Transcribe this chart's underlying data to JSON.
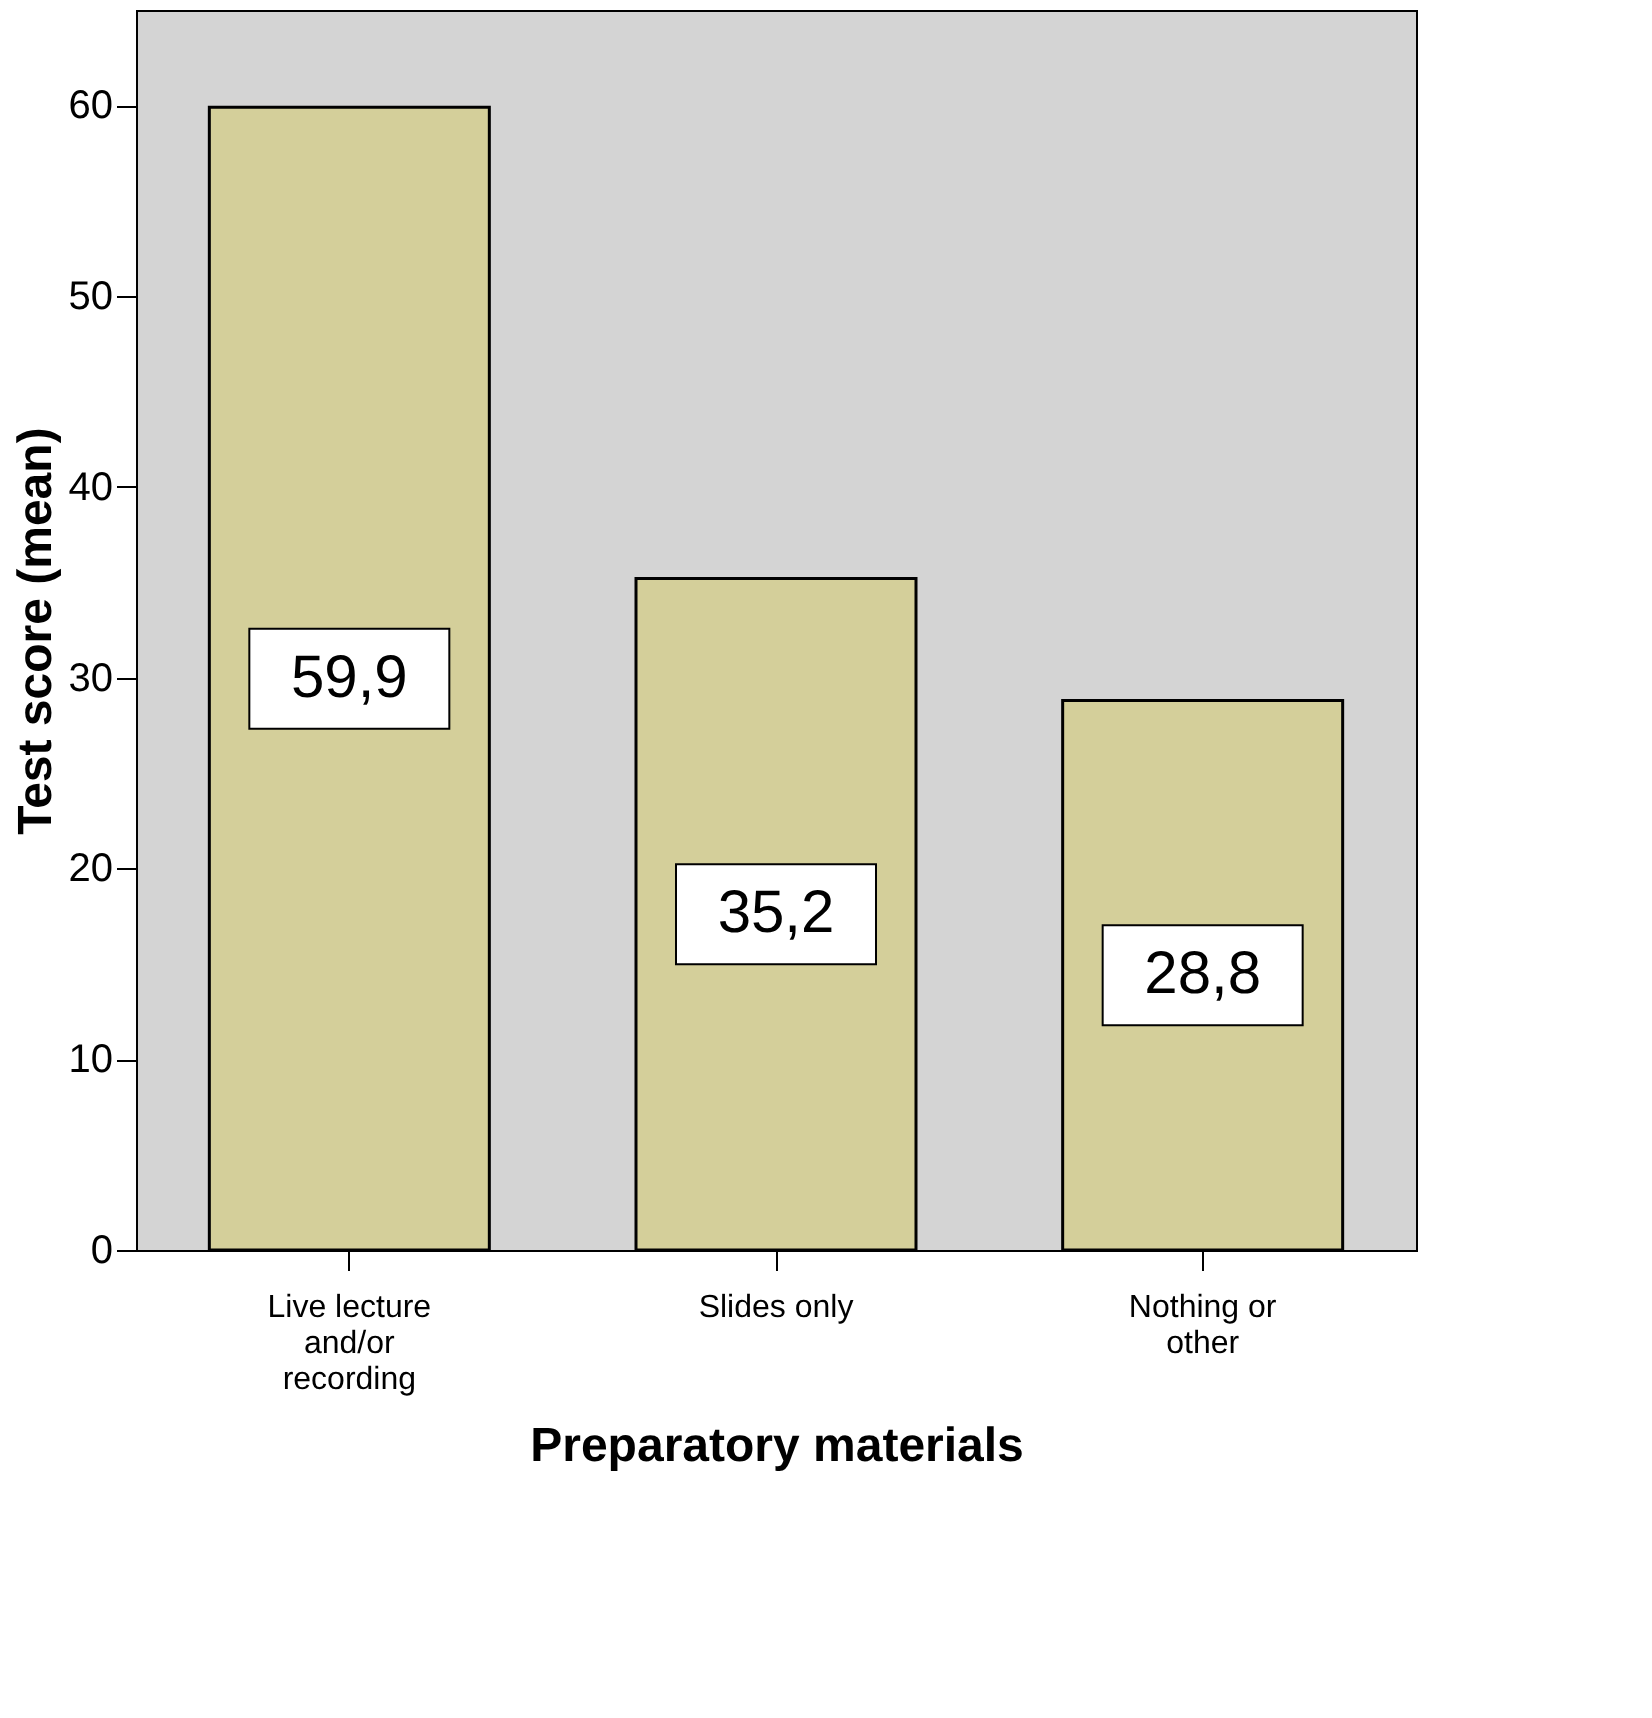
{
  "chart_data": {
    "type": "bar",
    "xlabel": "Preparatory materials",
    "ylabel": "Test score (mean)",
    "categories": [
      "Live lecture and/or recording",
      "Slides only",
      "Nothing or other"
    ],
    "values": [
      59.9,
      35.2,
      28.8
    ],
    "value_labels": [
      "59,9",
      "35,2",
      "28,8"
    ],
    "color": "#d4cf9a",
    "ylim": [
      0,
      65
    ],
    "yticks": [
      0,
      10,
      20,
      30,
      40,
      50,
      60
    ],
    "grid": false
  }
}
